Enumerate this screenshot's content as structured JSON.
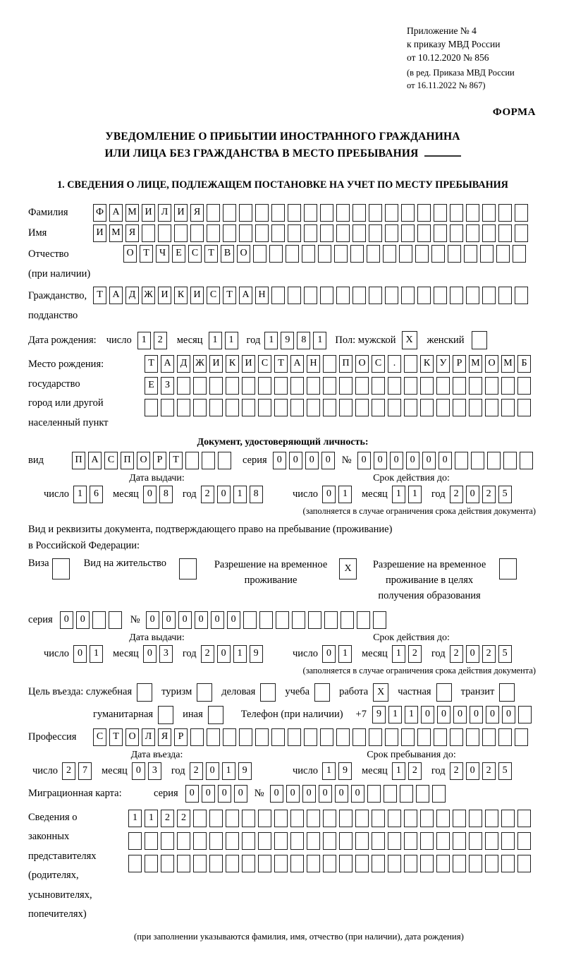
{
  "labels": {
    "day": "число",
    "month": "месяц",
    "year": "год",
    "series": "серия",
    "number": "№",
    "issue_date": "Дата выдачи:",
    "valid_until": "Срок действия до:",
    "validity_note": "(заполняется в случае ограничения срока действия документа)",
    "entry_date": "Дата въезда:",
    "stay_until": "Срок пребывания до:"
  },
  "header": {
    "line1": "Приложение № 4",
    "line2": "к приказу МВД России",
    "line3": "от 10.12.2020 № 856",
    "line4": "(в ред. Приказа МВД России",
    "line5": "от 16.11.2022 № 867)",
    "form_label": "ФОРМА"
  },
  "title": {
    "line1": "УВЕДОМЛЕНИЕ О ПРИБЫТИИ ИНОСТРАННОГО ГРАЖДАНИНА",
    "line2": "ИЛИ ЛИЦА БЕЗ ГРАЖДАНСТВА В МЕСТО ПРЕБЫВАНИЯ"
  },
  "section1_title": "1. СВЕДЕНИЯ О ЛИЦЕ, ПОДЛЕЖАЩЕМ ПОСТАНОВКЕ НА УЧЕТ ПО МЕСТУ ПРЕБЫВАНИЯ",
  "fields": {
    "surname": {
      "label": "Фамилия",
      "cells": "ФАМИЛИЯ____________________"
    },
    "name": {
      "label": "Имя",
      "cells": "ИМЯ________________________"
    },
    "patronymic": {
      "label1": "Отчество",
      "label2": "(при наличии)",
      "cells": "ОТЧЕСТВО_________________"
    },
    "citizenship": {
      "label1": "Гражданство,",
      "label2": "подданство",
      "cells": "ТАДЖИКИСТАН________________"
    },
    "birth": {
      "label": "Дата рождения:",
      "day": "12",
      "month": "11",
      "year": "1981",
      "sex_label": "Пол: мужской",
      "male": "X",
      "female_label": "женский",
      "female": ""
    },
    "birthplace": {
      "label1": "Место рождения:",
      "label2": "государство",
      "label3": "город или другой",
      "label4": "населенный пункт",
      "row1": "ТАДЖИКИСТАН_ПОС._КУРМОМБ",
      "row2": "ЕЗ______________________",
      "row3": "________________________"
    },
    "identity_doc": {
      "header": "Документ, удостоверяющий личность:",
      "type_label": "вид",
      "type_cells": "ПАСПОРТ___",
      "series_cells": "0000",
      "number_cells": "000000_____",
      "issue": {
        "day": "16",
        "month": "08",
        "year": "2018"
      },
      "valid": {
        "day": "01",
        "month": "11",
        "year": "2025"
      }
    },
    "residence_doc": {
      "intro1": "Вид и реквизиты документа, подтверждающего право на пребывание (проживание)",
      "intro2": "в Российской Федерации:",
      "visa_label": "Виза",
      "visa": "",
      "permit_label": "Вид на жительство",
      "permit": "",
      "temp_label1": "Разрешение на временное",
      "temp_label2": "проживание",
      "temp": "X",
      "edu_label1": "Разрешение на временное",
      "edu_label2": "проживание в целях",
      "edu_label3": "получения образования",
      "edu": "",
      "series_cells": "00__",
      "number_cells": "000000_________",
      "issue": {
        "day": "01",
        "month": "03",
        "year": "2019"
      },
      "valid": {
        "day": "01",
        "month": "12",
        "year": "2025"
      }
    },
    "purpose": {
      "label": "Цель въезда: служебная",
      "official": "",
      "tourism_label": "туризм",
      "tourism": "",
      "business_label": "деловая",
      "business": "",
      "study_label": "учеба",
      "study": "",
      "work_label": "работа",
      "work": "X",
      "private_label": "частная",
      "private": "",
      "transit_label": "транзит",
      "transit": "",
      "humanitarian_label": "гуманитарная",
      "humanitarian": "",
      "other_label": "иная",
      "other": ""
    },
    "phone": {
      "label": "Телефон (при наличии)",
      "prefix": "+7",
      "cells": "911000000_"
    },
    "profession": {
      "label": "Профессия",
      "cells": "СТОЛЯР_____________________"
    },
    "entry": {
      "entry": {
        "day": "27",
        "month": "03",
        "year": "2019"
      },
      "stay": {
        "day": "19",
        "month": "12",
        "year": "2025"
      }
    },
    "migration": {
      "label": "Миграционная карта:",
      "series_cells": "0000",
      "number_cells": "000000_____"
    },
    "representatives": {
      "label1": "Сведения о",
      "label2": "законных",
      "label3": "представителях",
      "label4": "(родителях,",
      "label5": "усыновителях,",
      "label6": "попечителях)",
      "row1": "1122_____________________",
      "row2": "_________________________",
      "row3": "_________________________",
      "footnote": "(при заполнении указываются фамилия, имя, отчество (при наличии), дата рождения)"
    }
  }
}
